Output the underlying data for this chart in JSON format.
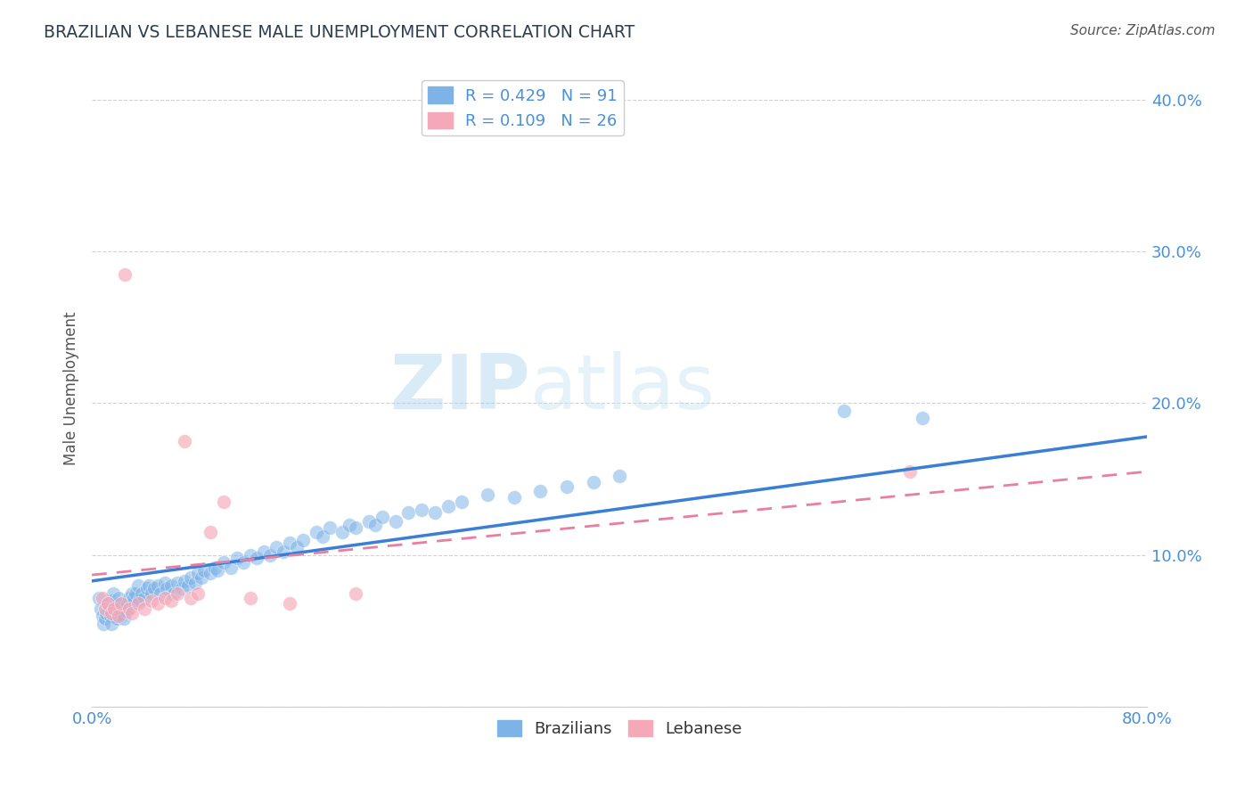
{
  "title": "BRAZILIAN VS LEBANESE MALE UNEMPLOYMENT CORRELATION CHART",
  "source": "Source: ZipAtlas.com",
  "ylabel": "Male Unemployment",
  "xmin": 0.0,
  "xmax": 0.8,
  "ymin": 0.0,
  "ymax": 0.42,
  "yticks": [
    0.0,
    0.1,
    0.2,
    0.3,
    0.4
  ],
  "ytick_labels": [
    "",
    "10.0%",
    "20.0%",
    "30.0%",
    "40.0%"
  ],
  "xticks": [
    0.0,
    0.1,
    0.2,
    0.3,
    0.4,
    0.5,
    0.6,
    0.7,
    0.8
  ],
  "xtick_labels": [
    "0.0%",
    "",
    "",
    "",
    "",
    "",
    "",
    "",
    "80.0%"
  ],
  "watermark_zip": "ZIP",
  "watermark_atlas": "atlas",
  "brazilian_color": "#7eb3e8",
  "lebanese_color": "#f4a8b8",
  "trend_blue": "#3a7fd5",
  "trend_pink": "#e87fa0",
  "background_color": "#ffffff",
  "grid_color": "#cccccc",
  "title_color": "#2c3e50",
  "tick_label_color": "#4a90d9",
  "blue_trend_x0": 0.0,
  "blue_trend_y0": 0.083,
  "blue_trend_x1": 0.8,
  "blue_trend_y1": 0.178,
  "pink_trend_x0": 0.0,
  "pink_trend_y0": 0.087,
  "pink_trend_x1": 0.8,
  "pink_trend_y1": 0.155,
  "brazilians_x": [
    0.005,
    0.007,
    0.008,
    0.009,
    0.01,
    0.011,
    0.012,
    0.013,
    0.014,
    0.015,
    0.015,
    0.016,
    0.017,
    0.018,
    0.019,
    0.02,
    0.02,
    0.021,
    0.022,
    0.023,
    0.024,
    0.025,
    0.026,
    0.027,
    0.028,
    0.03,
    0.031,
    0.032,
    0.033,
    0.035,
    0.036,
    0.038,
    0.04,
    0.042,
    0.043,
    0.045,
    0.047,
    0.05,
    0.052,
    0.055,
    0.057,
    0.06,
    0.062,
    0.065,
    0.068,
    0.07,
    0.073,
    0.075,
    0.078,
    0.08,
    0.083,
    0.085,
    0.09,
    0.093,
    0.095,
    0.1,
    0.105,
    0.11,
    0.115,
    0.12,
    0.125,
    0.13,
    0.135,
    0.14,
    0.145,
    0.15,
    0.155,
    0.16,
    0.17,
    0.175,
    0.18,
    0.19,
    0.195,
    0.2,
    0.21,
    0.215,
    0.22,
    0.23,
    0.24,
    0.25,
    0.26,
    0.27,
    0.28,
    0.3,
    0.32,
    0.34,
    0.36,
    0.38,
    0.4,
    0.57,
    0.63
  ],
  "brazilians_y": [
    0.072,
    0.065,
    0.06,
    0.055,
    0.058,
    0.062,
    0.068,
    0.063,
    0.06,
    0.055,
    0.07,
    0.075,
    0.065,
    0.06,
    0.058,
    0.068,
    0.072,
    0.065,
    0.06,
    0.062,
    0.058,
    0.065,
    0.063,
    0.068,
    0.072,
    0.075,
    0.068,
    0.072,
    0.075,
    0.08,
    0.07,
    0.075,
    0.072,
    0.078,
    0.08,
    0.075,
    0.078,
    0.08,
    0.075,
    0.082,
    0.078,
    0.08,
    0.075,
    0.082,
    0.078,
    0.083,
    0.08,
    0.085,
    0.082,
    0.088,
    0.085,
    0.09,
    0.088,
    0.092,
    0.09,
    0.095,
    0.092,
    0.098,
    0.095,
    0.1,
    0.098,
    0.102,
    0.1,
    0.105,
    0.102,
    0.108,
    0.105,
    0.11,
    0.115,
    0.112,
    0.118,
    0.115,
    0.12,
    0.118,
    0.122,
    0.12,
    0.125,
    0.122,
    0.128,
    0.13,
    0.128,
    0.132,
    0.135,
    0.14,
    0.138,
    0.142,
    0.145,
    0.148,
    0.152,
    0.195,
    0.19
  ],
  "lebanese_x": [
    0.008,
    0.01,
    0.012,
    0.015,
    0.017,
    0.02,
    0.022,
    0.025,
    0.028,
    0.03,
    0.035,
    0.04,
    0.045,
    0.05,
    0.055,
    0.06,
    0.065,
    0.07,
    0.075,
    0.08,
    0.09,
    0.1,
    0.12,
    0.15,
    0.2,
    0.62
  ],
  "lebanese_y": [
    0.072,
    0.065,
    0.068,
    0.062,
    0.065,
    0.06,
    0.068,
    0.285,
    0.065,
    0.062,
    0.068,
    0.065,
    0.07,
    0.068,
    0.072,
    0.07,
    0.075,
    0.175,
    0.072,
    0.075,
    0.115,
    0.135,
    0.072,
    0.068,
    0.075,
    0.155
  ]
}
